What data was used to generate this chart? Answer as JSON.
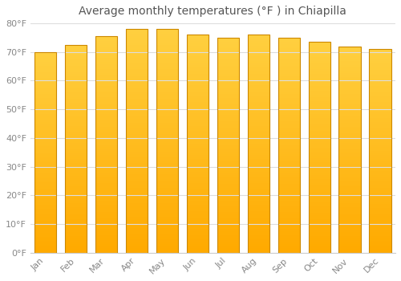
{
  "title": "Average monthly temperatures (°F ) in Chiapilla",
  "months": [
    "Jan",
    "Feb",
    "Mar",
    "Apr",
    "May",
    "Jun",
    "Jul",
    "Aug",
    "Sep",
    "Oct",
    "Nov",
    "Dec"
  ],
  "values": [
    70,
    72.5,
    75.5,
    78,
    78,
    76,
    75,
    76,
    75,
    73.5,
    72,
    71
  ],
  "bar_color_bottom": "#FFAA00",
  "bar_color_top": "#FFD040",
  "bar_edge_color": "#CC8800",
  "background_color": "#FFFFFF",
  "plot_bg_color": "#FFFFFF",
  "grid_color": "#DDDDDD",
  "ylim": [
    0,
    80
  ],
  "yticks": [
    0,
    10,
    20,
    30,
    40,
    50,
    60,
    70,
    80
  ],
  "ytick_labels": [
    "0°F",
    "10°F",
    "20°F",
    "30°F",
    "40°F",
    "50°F",
    "60°F",
    "70°F",
    "80°F"
  ],
  "title_fontsize": 10,
  "tick_fontsize": 8,
  "tick_color": "#888888",
  "title_color": "#555555",
  "bar_width": 0.72
}
